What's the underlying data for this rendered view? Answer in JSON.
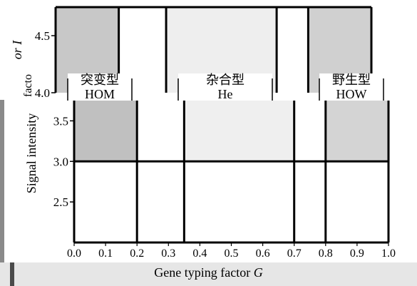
{
  "chart_data": [
    {
      "type": "heatmap",
      "x_ticks": [
        4.5,
        4.0
      ],
      "y_range": [
        4.0,
        4.75
      ],
      "x_boundaries": [
        0.0,
        0.2,
        0.35,
        0.7,
        0.8,
        1.0
      ],
      "cells": [
        {
          "x0": 0.0,
          "x1": 0.2,
          "fill": "#c8c8c8"
        },
        {
          "x0": 0.2,
          "x1": 0.35,
          "fill": "#ffffff"
        },
        {
          "x0": 0.35,
          "x1": 0.7,
          "fill": "#eeeeee"
        },
        {
          "x0": 0.7,
          "x1": 0.8,
          "fill": "#ffffff"
        },
        {
          "x0": 0.8,
          "x1": 1.0,
          "fill": "#d0d0d0"
        }
      ],
      "region_labels": [
        {
          "cn": "突变型",
          "en": "HOM"
        },
        {
          "cn": "杂合型",
          "en": "He"
        },
        {
          "cn": "野生型",
          "en": "HOW"
        }
      ],
      "ylabel_fragment": "or I",
      "ylabel_fragment2": "facto"
    },
    {
      "type": "heatmap",
      "ylabel": "Signal intensity",
      "xlabel": "Gene typing factor",
      "xlabel_symbol": "G",
      "x_ticks": [
        "0.0",
        "0.1",
        "0.2",
        "0.3",
        "0.4",
        "0.5",
        "0.6",
        "0.7",
        "0.8",
        "0.9",
        "1.0"
      ],
      "y_ticks": [
        "3.5",
        "3.0",
        "2.5"
      ],
      "x_range": [
        0.0,
        1.0
      ],
      "y_range": [
        2.0,
        3.75
      ],
      "x_boundaries": [
        0.0,
        0.2,
        0.35,
        0.7,
        0.8,
        1.0
      ],
      "y_boundary": 3.0,
      "cells_upper": [
        {
          "x0": 0.0,
          "x1": 0.2,
          "fill": "#c0c0c0"
        },
        {
          "x0": 0.2,
          "x1": 0.35,
          "fill": "#ffffff"
        },
        {
          "x0": 0.35,
          "x1": 0.7,
          "fill": "#efefef"
        },
        {
          "x0": 0.7,
          "x1": 0.8,
          "fill": "#ffffff"
        },
        {
          "x0": 0.8,
          "x1": 1.0,
          "fill": "#d4d4d4"
        }
      ],
      "lower_fill": "#ffffff"
    }
  ]
}
